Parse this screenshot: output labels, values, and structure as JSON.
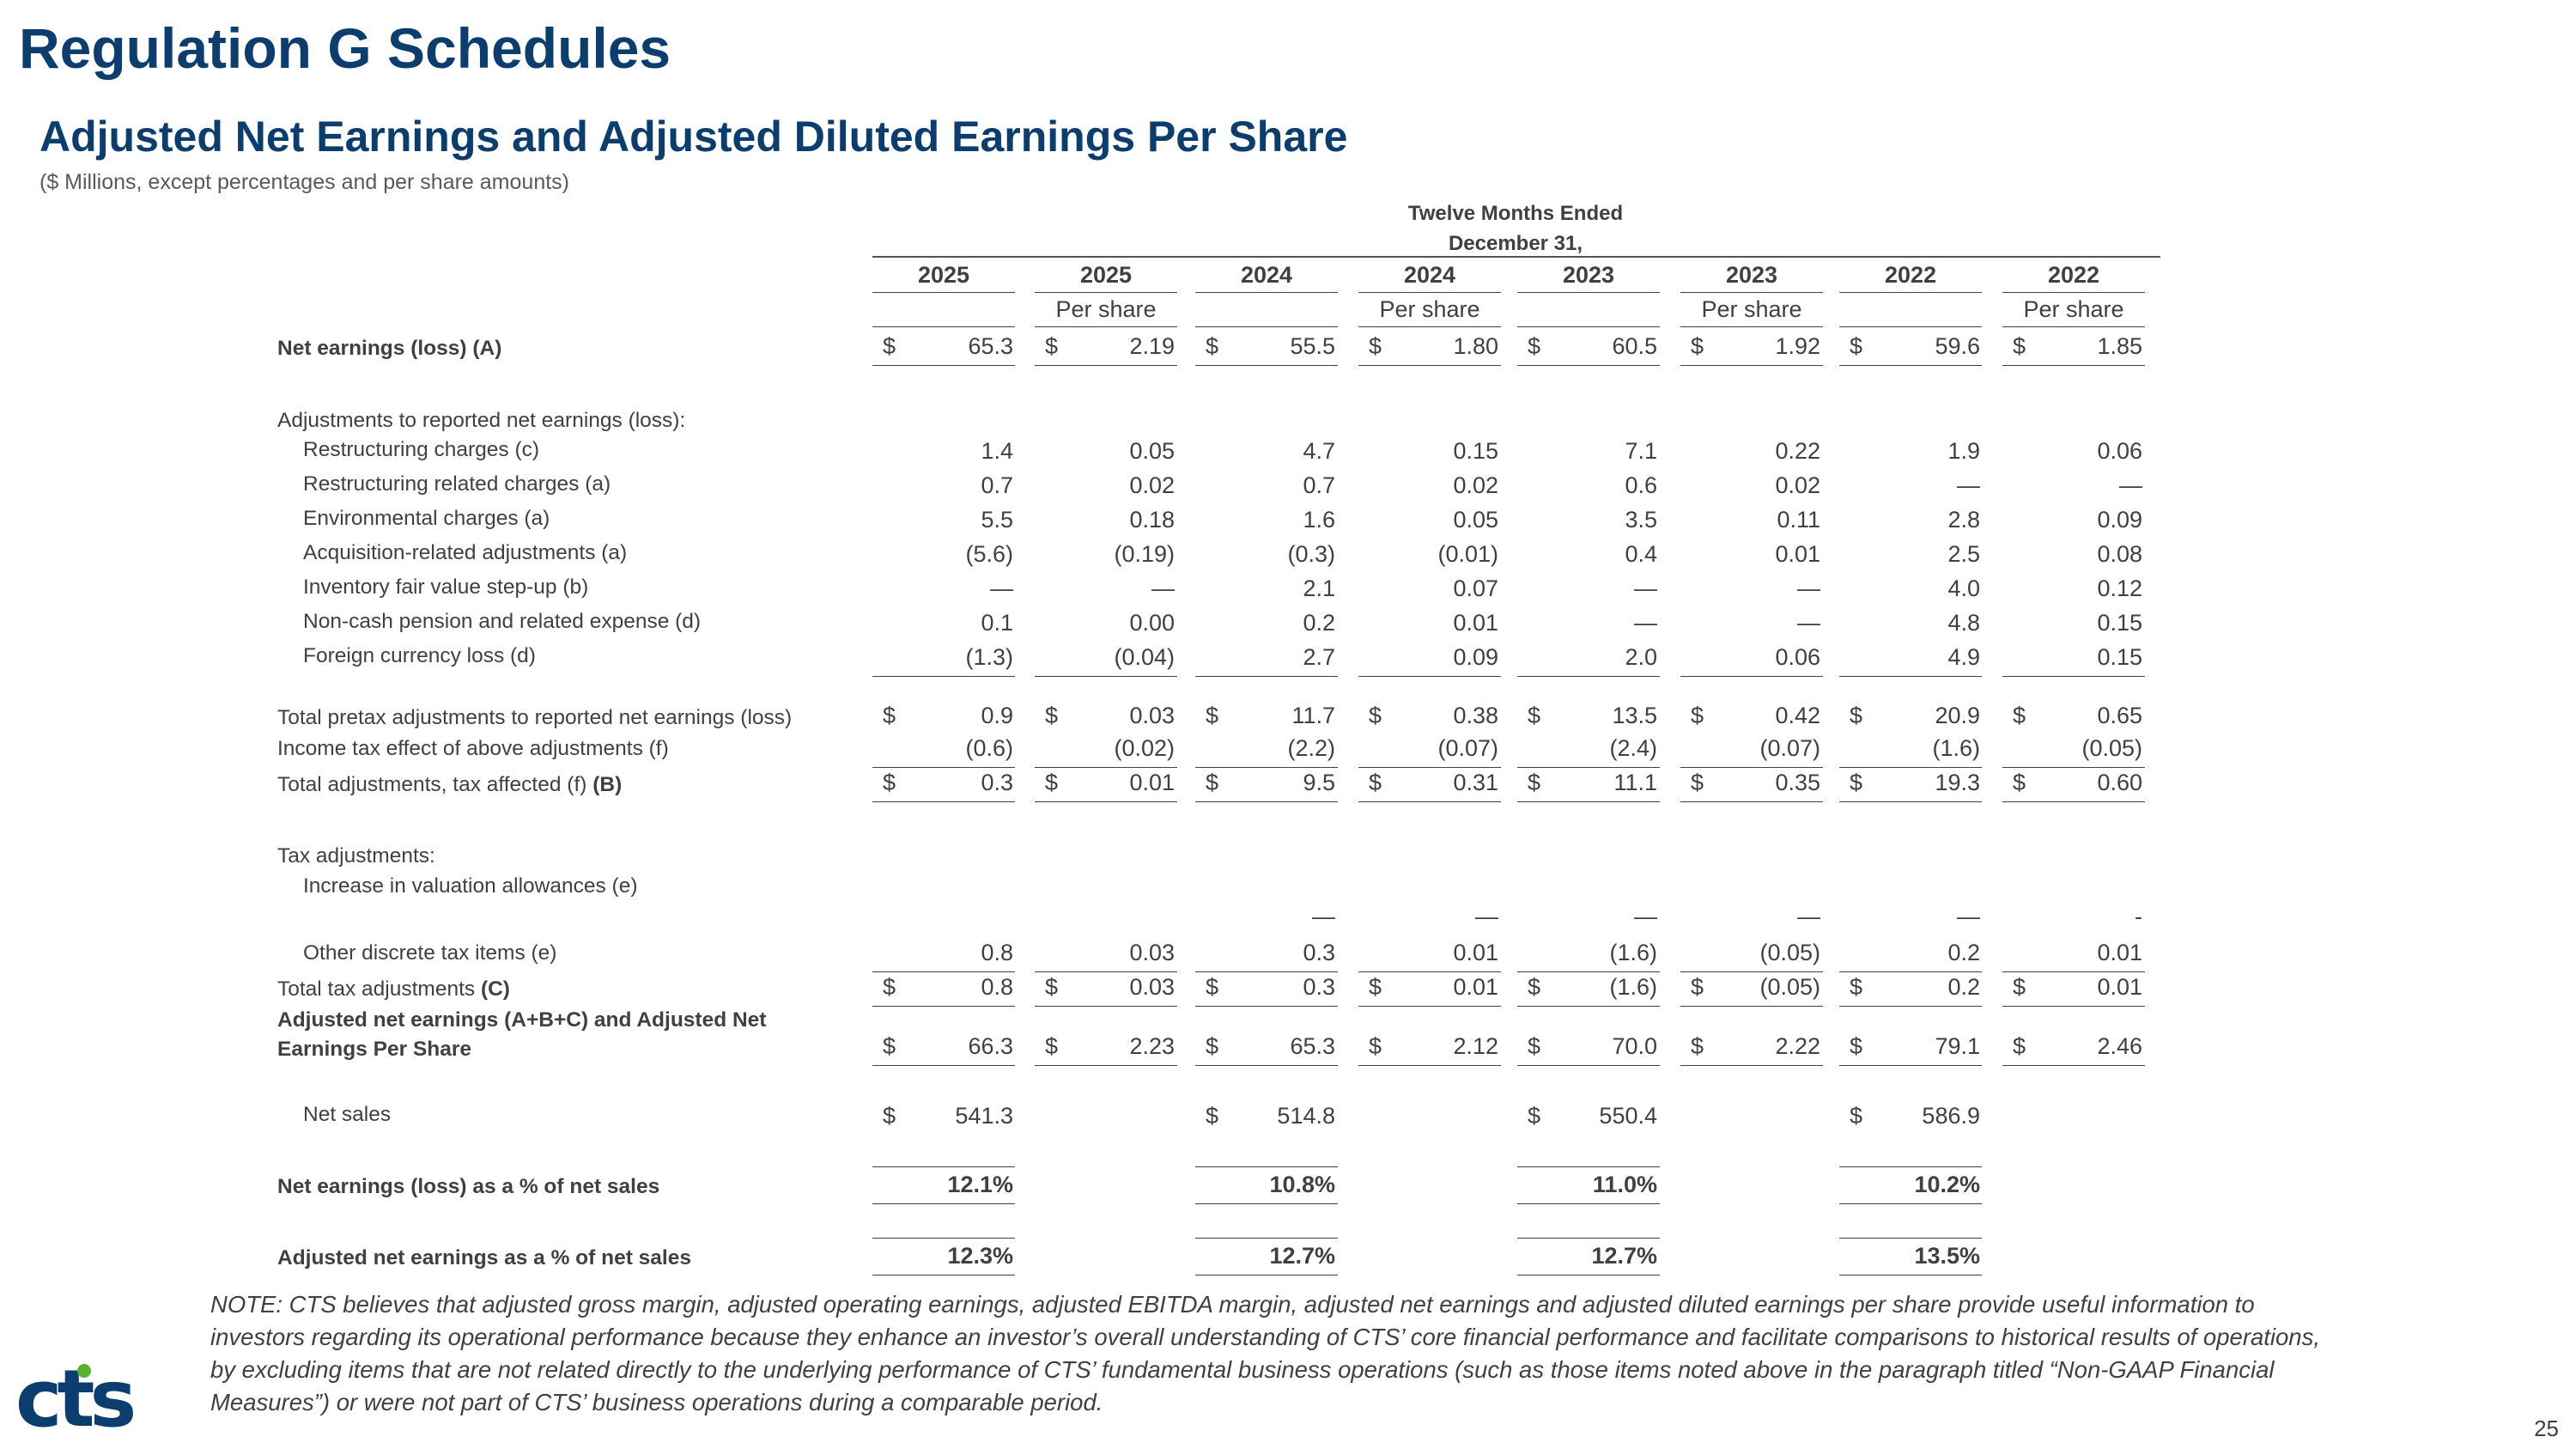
{
  "page": {
    "title": "Regulation G Schedules",
    "subtitle": "Adjusted Net Earnings and Adjusted Diluted Earnings Per Share",
    "units_note": "($ Millions, except percentages and per share amounts)",
    "header_line1": "Twelve Months Ended",
    "header_line2": "December 31,",
    "page_number": "25",
    "logo_text": "cts",
    "note": "NOTE: CTS believes that adjusted gross margin, adjusted operating earnings, adjusted EBITDA margin, adjusted net earnings and adjusted diluted earnings per share provide useful information to investors regarding its operational performance because they enhance an investor’s overall understanding of CTS’ core financial performance and facilitate comparisons to historical results of operations, by excluding items that are not related directly to the underlying performance of CTS’ fundamental business operations (such as those items noted above in the paragraph titled “Non-GAAP Financial Measures”) or were not part of CTS’ business operations during a comparable period."
  },
  "columns": [
    {
      "year": "2025",
      "sub": ""
    },
    {
      "year": "2025",
      "sub": "Per share"
    },
    {
      "year": "2024",
      "sub": ""
    },
    {
      "year": "2024",
      "sub": "Per share"
    },
    {
      "year": "2023",
      "sub": ""
    },
    {
      "year": "2023",
      "sub": "Per share"
    },
    {
      "year": "2022",
      "sub": ""
    },
    {
      "year": "2022",
      "sub": "Per share"
    }
  ],
  "rows": {
    "net_earnings": {
      "label": "Net earnings (loss) (A)",
      "values": [
        "65.3",
        "2.19",
        "55.5",
        "1.80",
        "60.5",
        "1.92",
        "59.6",
        "1.85"
      ]
    },
    "adj_header": {
      "label": "Adjustments to reported net earnings (loss):"
    },
    "restructuring": {
      "label": "Restructuring charges (c)",
      "values": [
        "1.4",
        "0.05",
        "4.7",
        "0.15",
        "7.1",
        "0.22",
        "1.9",
        "0.06"
      ]
    },
    "restructuring_related": {
      "label": "Restructuring related charges (a)",
      "values": [
        "0.7",
        "0.02",
        "0.7",
        "0.02",
        "0.6",
        "0.02",
        "—",
        "—"
      ]
    },
    "environmental": {
      "label": "Environmental charges (a)",
      "values": [
        "5.5",
        "0.18",
        "1.6",
        "0.05",
        "3.5",
        "0.11",
        "2.8",
        "0.09"
      ]
    },
    "acquisition": {
      "label": "Acquisition-related adjustments (a)",
      "values": [
        "(5.6)",
        "(0.19)",
        "(0.3)",
        "(0.01)",
        "0.4",
        "0.01",
        "2.5",
        "0.08"
      ]
    },
    "inventory": {
      "label": "Inventory fair value step-up (b)",
      "values": [
        "—",
        "—",
        "2.1",
        "0.07",
        "—",
        "—",
        "4.0",
        "0.12"
      ]
    },
    "pension": {
      "label": "Non-cash pension and related expense (d)",
      "values": [
        "0.1",
        "0.00",
        "0.2",
        "0.01",
        "—",
        "—",
        "4.8",
        "0.15"
      ]
    },
    "fx": {
      "label": "Foreign currency loss (d)",
      "values": [
        "(1.3)",
        "(0.04)",
        "2.7",
        "0.09",
        "2.0",
        "0.06",
        "4.9",
        "0.15"
      ]
    },
    "total_pretax": {
      "label": "Total pretax adjustments to reported net earnings (loss)",
      "values": [
        "0.9",
        "0.03",
        "11.7",
        "0.38",
        "13.5",
        "0.42",
        "20.9",
        "0.65"
      ]
    },
    "tax_effect": {
      "label": "Income tax effect of above adjustments (f)",
      "values": [
        "(0.6)",
        "(0.02)",
        "(2.2)",
        "(0.07)",
        "(2.4)",
        "(0.07)",
        "(1.6)",
        "(0.05)"
      ]
    },
    "total_tax_affected": {
      "label_a": "Total adjustments, tax affected (f) ",
      "label_b": "(B)",
      "values": [
        "0.3",
        "0.01",
        "9.5",
        "0.31",
        "11.1",
        "0.35",
        "19.3",
        "0.60"
      ]
    },
    "tax_adj_header": {
      "label": "Tax adjustments:"
    },
    "valuation": {
      "label": "Increase in valuation allowances (e)",
      "values": [
        "",
        "",
        "—",
        "—",
        "—",
        "—",
        "—",
        "-"
      ]
    },
    "other_discrete": {
      "label": "Other discrete tax items (e)",
      "values": [
        "0.8",
        "0.03",
        "0.3",
        "0.01",
        "(1.6)",
        "(0.05)",
        "0.2",
        "0.01"
      ]
    },
    "total_tax_adj": {
      "label_a": "Total tax adjustments ",
      "label_b": "(C)",
      "values": [
        "0.8",
        "0.03",
        "0.3",
        "0.01",
        "(1.6)",
        "(0.05)",
        "0.2",
        "0.01"
      ]
    },
    "adjusted_net": {
      "label_1": "Adjusted net earnings (A+B+C) and Adjusted Net",
      "label_2": "Earnings Per Share",
      "values": [
        "66.3",
        "2.23",
        "65.3",
        "2.12",
        "70.0",
        "2.22",
        "79.1",
        "2.46"
      ]
    },
    "net_sales": {
      "label": "Net sales",
      "values": [
        "541.3",
        "",
        "514.8",
        "",
        "550.4",
        "",
        "586.9",
        ""
      ]
    },
    "net_pct": {
      "label": "Net earnings (loss) as a % of net sales",
      "values": [
        "12.1%",
        "",
        "10.8%",
        "",
        "11.0%",
        "",
        "10.2%",
        ""
      ]
    },
    "adj_pct": {
      "label": "Adjusted net earnings as a % of net sales",
      "values": [
        "12.3%",
        "",
        "12.7%",
        "",
        "12.7%",
        "",
        "13.5%",
        ""
      ]
    }
  },
  "currency_symbol": "$"
}
